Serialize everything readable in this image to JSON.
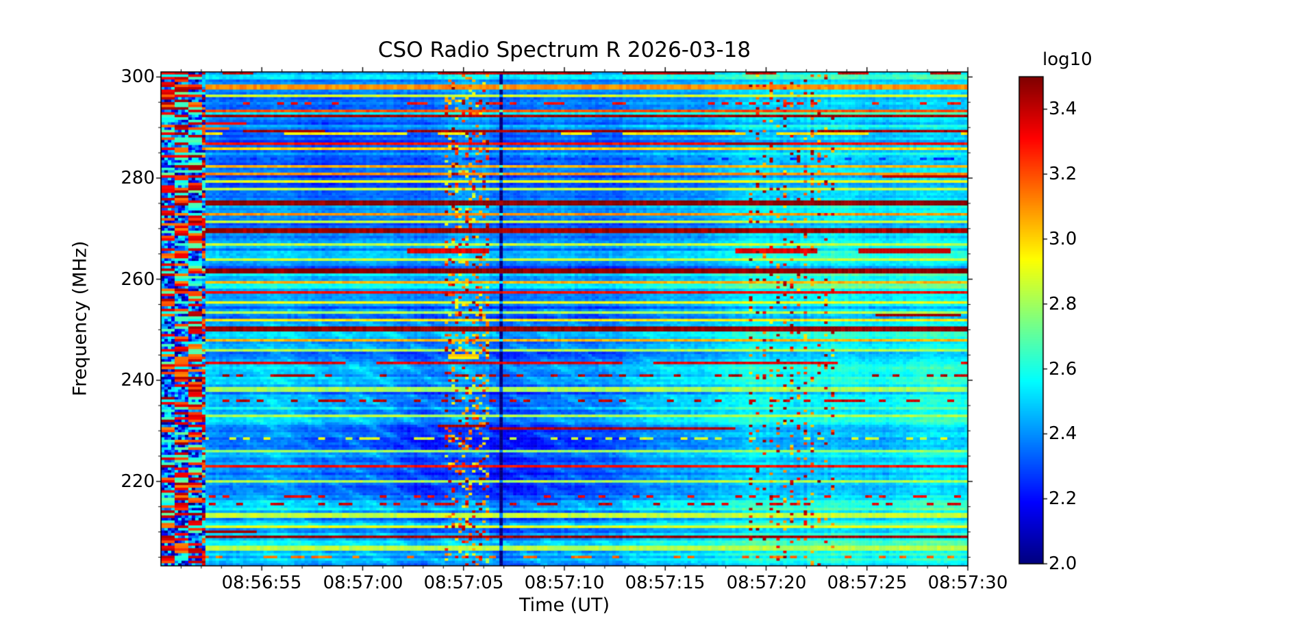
{
  "figure": {
    "title": "CSO Radio Spectrum R 2026-03-18",
    "background_color": "#ffffff"
  },
  "axes": {
    "x": {
      "label": "Time (UT)",
      "ticks": [
        "08:56:55",
        "08:57:00",
        "08:57:05",
        "08:57:10",
        "08:57:15",
        "08:57:20",
        "08:57:25",
        "08:57:30"
      ],
      "tick_offsets_s": [
        5,
        10,
        15,
        20,
        25,
        30,
        35,
        40
      ],
      "minor_step_s": 1,
      "start": "08:56:50",
      "end": "08:57:30"
    },
    "y": {
      "label": "Frequency (MHz)",
      "ticks": [
        "300",
        "280",
        "260",
        "240",
        "220"
      ],
      "tick_values": [
        300,
        280,
        260,
        240,
        220
      ],
      "minor_step_mhz": 5,
      "top_mhz": 301,
      "bottom_mhz": 203.3
    }
  },
  "colorbar": {
    "label": "log10",
    "ticks": [
      "3.4",
      "3.2",
      "3.0",
      "2.8",
      "2.6",
      "2.4",
      "2.2",
      "2.0"
    ],
    "tick_values": [
      3.4,
      3.2,
      3.0,
      2.8,
      2.6,
      2.4,
      2.2,
      2.0
    ],
    "vmin": 2.0,
    "vmax": 3.5,
    "colormap": "jet"
  },
  "chart_data": {
    "type": "heatmap",
    "subtype": "radio_spectrogram",
    "title": "CSO Radio Spectrum R 2026-03-18",
    "xlabel": "Time (UT)",
    "ylabel": "Frequency (MHz)",
    "x_ticks": [
      "08:56:55",
      "08:57:00",
      "08:57:05",
      "08:57:10",
      "08:57:15",
      "08:57:20",
      "08:57:25",
      "08:57:30"
    ],
    "y_ticks": [
      300,
      280,
      260,
      240,
      220
    ],
    "x_start": "08:56:50",
    "x_end": "08:57:30",
    "x_span_seconds": 40,
    "freq_top_mhz": 301,
    "freq_bottom_mhz": 203.3,
    "value_scale": "log10",
    "vmin": 2.0,
    "vmax": 3.5,
    "colormap": "jet",
    "grid": {
      "cols": 236,
      "rows": 196
    },
    "background_level": 2.44,
    "features": {
      "left_startup_artifact_end_s": 2.2,
      "dips": [
        {
          "t": 16.5,
          "f": 226,
          "amp": -0.2,
          "st": 7.5,
          "sf": 26
        },
        {
          "t": 9.0,
          "f": 284,
          "amp": -0.07,
          "st": 6.0,
          "sf": 14
        },
        {
          "t": 22.5,
          "f": 271,
          "amp": -0.06,
          "st": 5.0,
          "sf": 22
        },
        {
          "t": 33.0,
          "f": 227,
          "amp": -0.07,
          "st": 3.5,
          "sf": 16
        }
      ],
      "right_warming": {
        "from_s": 26.5,
        "amp": 0.11
      },
      "speckle_band_s": [
        14.1,
        16.3
      ],
      "dark_vertical_line_s": 16.9,
      "dotted_vertical_bands_s": [
        29.0,
        33.6
      ],
      "diagonal_streaks": {
        "t_range_s": [
          3.5,
          27.5
        ],
        "f_below_mhz": 254,
        "amp": 0.1
      }
    },
    "rfi_lines": [
      {
        "f": 300.6,
        "level": 3.4,
        "style": "dashed",
        "w": 1
      },
      {
        "f": 298.0,
        "level": 3.1,
        "style": "solid",
        "w": 1
      },
      {
        "f": 296.2,
        "level": 2.88,
        "style": "solid",
        "w": 1
      },
      {
        "f": 294.6,
        "level": 3.3,
        "style": "dotted",
        "w": 1
      },
      {
        "f": 293.1,
        "level": 3.2,
        "style": "solid",
        "w": 1
      },
      {
        "f": 292.2,
        "level": 3.45,
        "style": "solid",
        "w": 1
      },
      {
        "f": 289.5,
        "level": 3.45,
        "style": "segments",
        "w": 1
      },
      {
        "f": 288.9,
        "level": 2.95,
        "style": "dashed",
        "w": 1
      },
      {
        "f": 286.7,
        "level": 3.3,
        "style": "solid",
        "w": 1
      },
      {
        "f": 285.6,
        "level": 3.0,
        "style": "solid",
        "w": 1
      },
      {
        "f": 283.6,
        "level": 2.25,
        "style": "dotted",
        "w": 1
      },
      {
        "f": 282.4,
        "level": 3.05,
        "style": "solid",
        "w": 1
      },
      {
        "f": 280.6,
        "level": 3.1,
        "style": "solid",
        "w": 1
      },
      {
        "f": 279.5,
        "level": 2.9,
        "style": "solid",
        "w": 1
      },
      {
        "f": 277.8,
        "level": 2.85,
        "style": "solid",
        "w": 1
      },
      {
        "f": 275.2,
        "level": 3.48,
        "style": "solid",
        "w": 2
      },
      {
        "f": 272.9,
        "level": 3.1,
        "style": "solid",
        "w": 1
      },
      {
        "f": 271.5,
        "level": 2.85,
        "style": "solid",
        "w": 1
      },
      {
        "f": 269.4,
        "level": 3.45,
        "style": "solid",
        "w": 2
      },
      {
        "f": 267.0,
        "level": 2.85,
        "style": "solid",
        "w": 1
      },
      {
        "f": 265.6,
        "level": 3.35,
        "style": "segments",
        "w": 1
      },
      {
        "f": 263.9,
        "level": 2.85,
        "style": "solid",
        "w": 1
      },
      {
        "f": 261.4,
        "level": 3.48,
        "style": "solid",
        "w": 2
      },
      {
        "f": 259.2,
        "level": 3.05,
        "style": "solid",
        "w": 1
      },
      {
        "f": 257.2,
        "level": 3.32,
        "style": "solid",
        "w": 1
      },
      {
        "f": 255.2,
        "level": 2.92,
        "style": "solid",
        "w": 1
      },
      {
        "f": 253.5,
        "level": 2.82,
        "style": "solid",
        "w": 1
      },
      {
        "f": 251.9,
        "level": 2.95,
        "style": "solid",
        "w": 1
      },
      {
        "f": 250.1,
        "level": 3.48,
        "style": "solid",
        "w": 2
      },
      {
        "f": 247.9,
        "level": 3.05,
        "style": "solid",
        "w": 1
      },
      {
        "f": 246.1,
        "level": 2.82,
        "style": "solid",
        "w": 1
      },
      {
        "f": 243.5,
        "level": 3.35,
        "style": "dashed",
        "w": 1
      },
      {
        "f": 240.9,
        "level": 3.42,
        "style": "dotted",
        "w": 1
      },
      {
        "f": 238.2,
        "level": 2.8,
        "style": "solid",
        "w": 1
      },
      {
        "f": 235.9,
        "level": 3.4,
        "style": "dotted",
        "w": 1
      },
      {
        "f": 233.1,
        "level": 2.82,
        "style": "solid",
        "w": 1
      },
      {
        "f": 230.7,
        "level": 3.42,
        "style": "segments",
        "w": 1
      },
      {
        "f": 228.4,
        "level": 2.88,
        "style": "dotted",
        "w": 1
      },
      {
        "f": 226.2,
        "level": 2.78,
        "style": "solid",
        "w": 1
      },
      {
        "f": 222.8,
        "level": 3.3,
        "style": "solid",
        "w": 1
      },
      {
        "f": 219.8,
        "level": 2.82,
        "style": "solid",
        "w": 1
      },
      {
        "f": 217.2,
        "level": 3.32,
        "style": "dotted",
        "w": 1
      },
      {
        "f": 215.4,
        "level": 3.38,
        "style": "dotted",
        "w": 1
      },
      {
        "f": 213.2,
        "level": 2.85,
        "style": "solid",
        "w": 2
      },
      {
        "f": 210.9,
        "level": 2.9,
        "style": "solid",
        "w": 1
      },
      {
        "f": 209.2,
        "level": 3.45,
        "style": "solid",
        "w": 1
      },
      {
        "f": 206.6,
        "level": 2.83,
        "style": "solid",
        "w": 2
      },
      {
        "f": 205.1,
        "level": 3.15,
        "style": "dotted",
        "w": 1
      }
    ],
    "extra_segments": [
      {
        "f": 280.4,
        "t0": 35.8,
        "t1": 40.0,
        "level": 3.42
      },
      {
        "f": 287.0,
        "t0": 28.0,
        "t1": 30.8,
        "level": 3.45
      },
      {
        "f": 253.0,
        "t0": 35.4,
        "t1": 39.6,
        "level": 3.46
      },
      {
        "f": 265.6,
        "t0": 34.6,
        "t1": 39.2,
        "level": 3.4
      },
      {
        "f": 231.0,
        "t0": 13.8,
        "t1": 16.1,
        "level": 3.44
      },
      {
        "f": 241.0,
        "t0": 5.6,
        "t1": 7.6,
        "level": 3.44
      },
      {
        "f": 210.1,
        "t0": 0.4,
        "t1": 4.7,
        "level": 3.45
      },
      {
        "f": 245.0,
        "t0": 14.2,
        "t1": 15.7,
        "level": 3.02
      },
      {
        "f": 244.3,
        "t0": 14.2,
        "t1": 15.7,
        "level": 2.96
      },
      {
        "f": 289.5,
        "t0": 6.2,
        "t1": 7.4,
        "level": 3.45
      },
      {
        "f": 289.5,
        "t0": 15.2,
        "t1": 16.2,
        "level": 3.45
      },
      {
        "f": 290.8,
        "t0": 2.2,
        "t1": 4.2,
        "level": 3.3
      },
      {
        "f": 289.9,
        "t0": 2.2,
        "t1": 3.4,
        "level": 3.15
      }
    ]
  }
}
